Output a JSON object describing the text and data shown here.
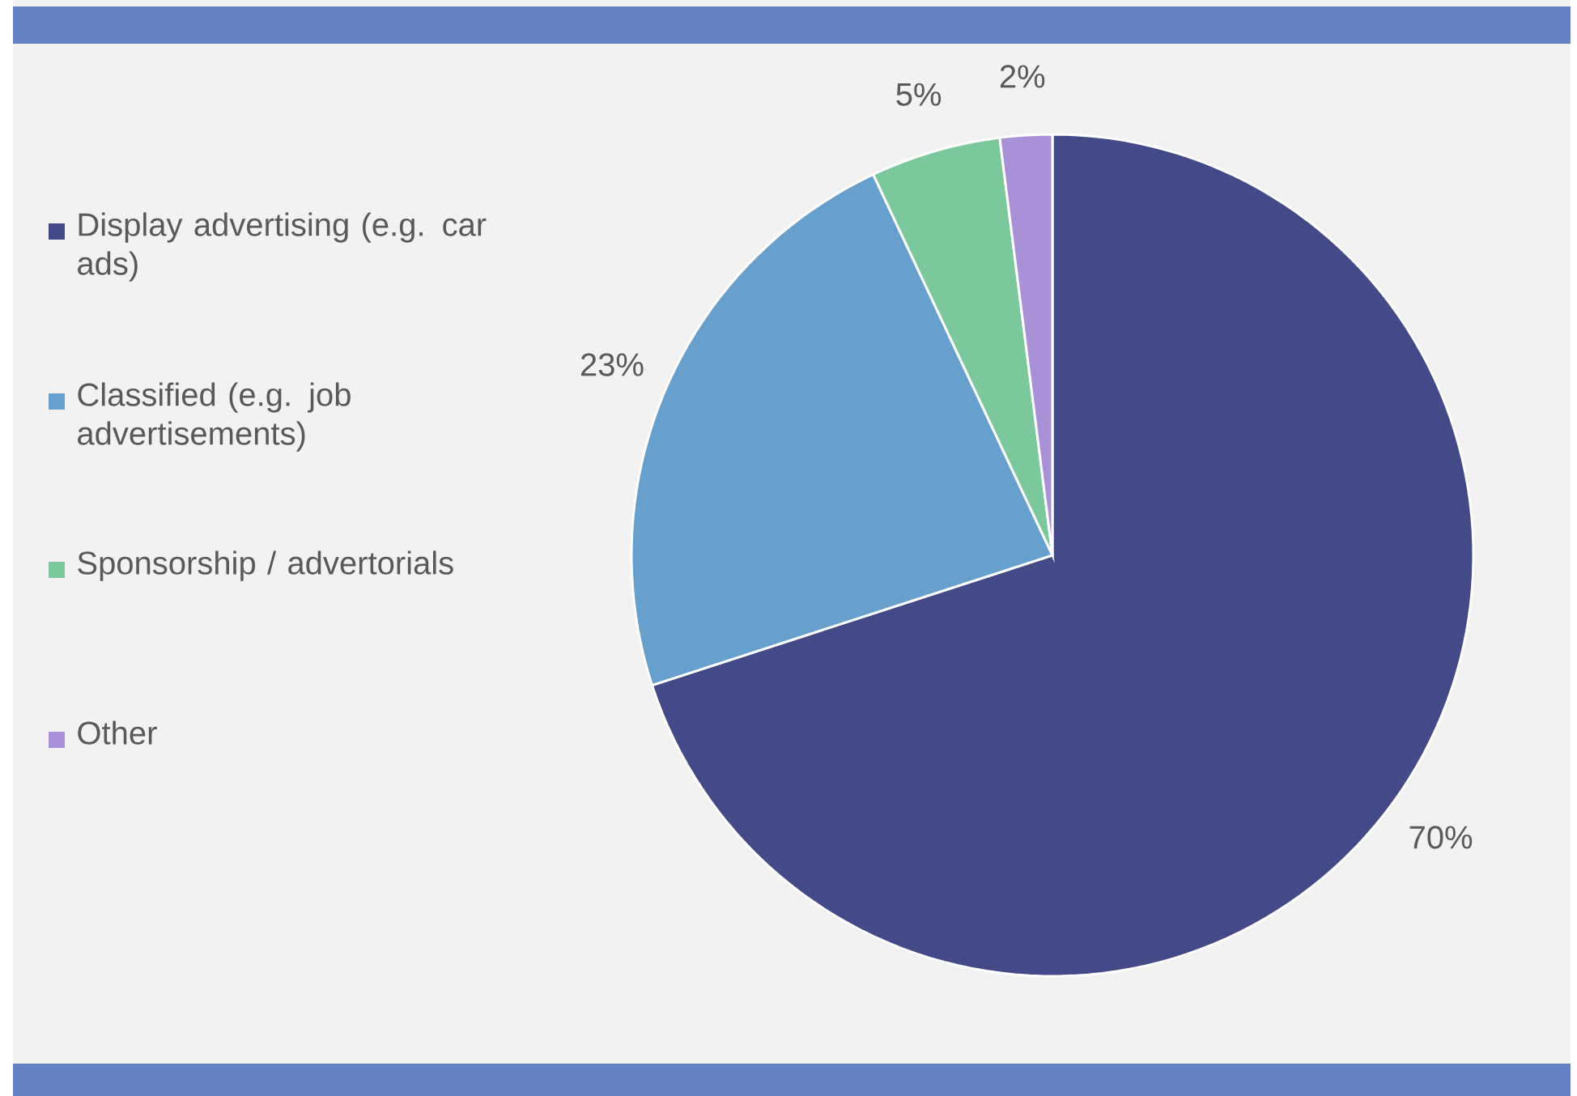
{
  "chart_data": {
    "type": "pie",
    "categories": [
      "Display advertising (e.g. car ads)",
      "Classified (e.g. job advertisements)",
      "Sponsorship / advertorials",
      "Other"
    ],
    "values": [
      70,
      23,
      5,
      2
    ],
    "value_labels": [
      "70%",
      "23%",
      "5%",
      "2%"
    ],
    "colors": [
      "#434a87",
      "#67a0cc",
      "#7bc89c",
      "#a991d8"
    ],
    "legend": "left"
  }
}
